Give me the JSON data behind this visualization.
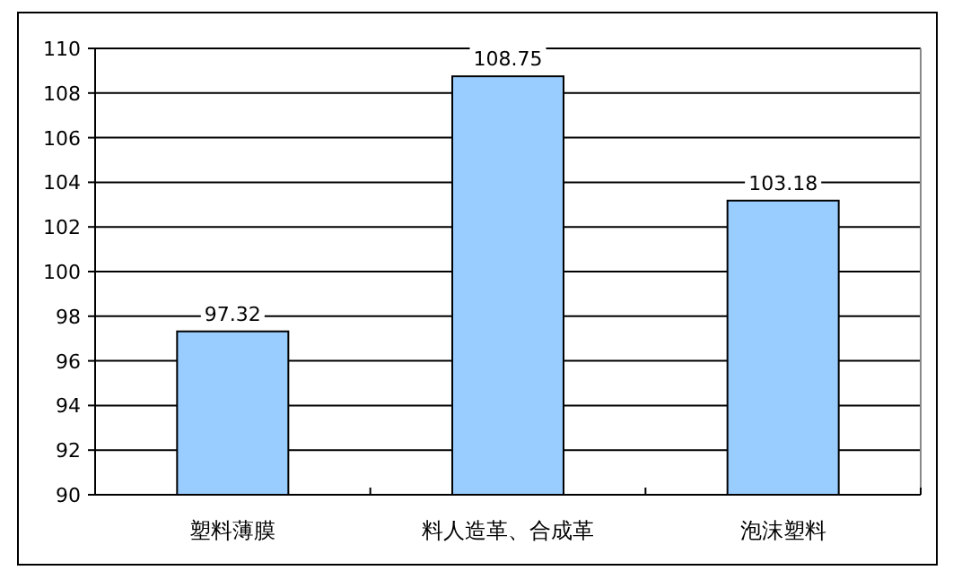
{
  "chart_data": {
    "type": "bar",
    "categories": [
      "塑料薄膜",
      "料人造革、合成革",
      "泡沫塑料"
    ],
    "values": [
      97.32,
      108.75,
      103.18
    ],
    "color": "#99ccff",
    "value_labels": [
      "97.32",
      "108.75",
      "103.18"
    ],
    "ylim": [
      90,
      110
    ],
    "yticks": [
      90,
      92,
      94,
      96,
      98,
      100,
      102,
      104,
      106,
      108,
      110
    ],
    "grid": "y"
  }
}
